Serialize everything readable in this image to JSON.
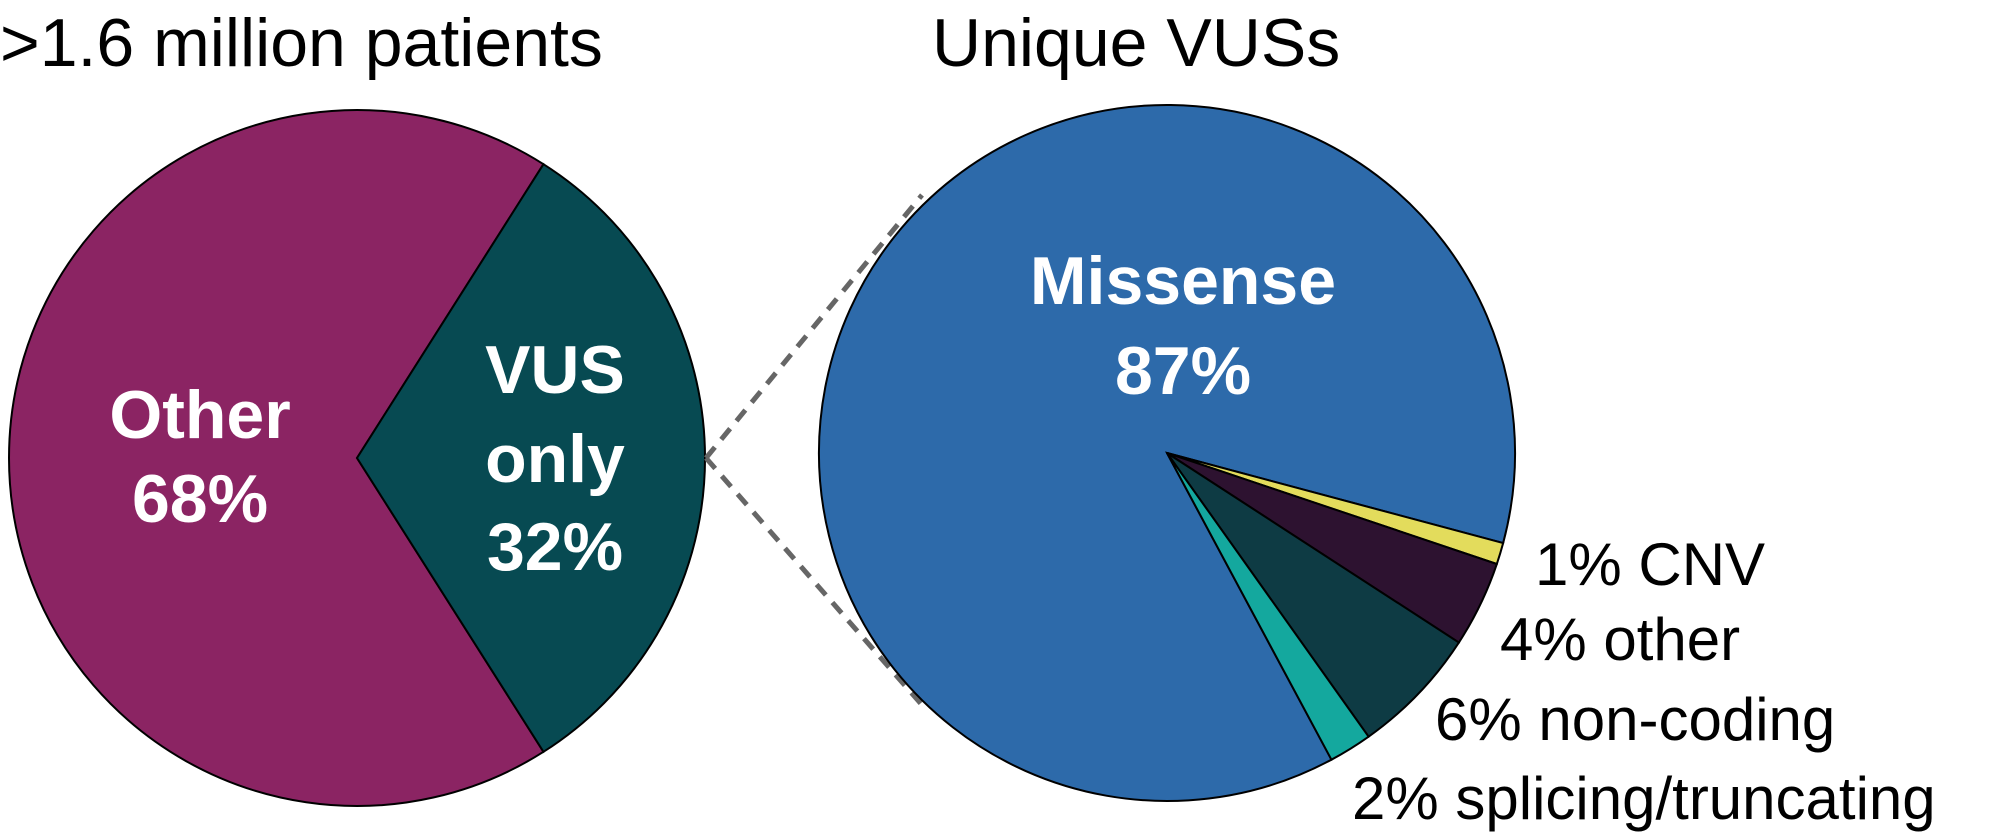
{
  "chart_data": [
    {
      "type": "pie",
      "title": ">1.6 million patients",
      "slices": [
        {
          "key": "other",
          "line1": "Other",
          "line2": "",
          "pct_label": "68%",
          "value": 68,
          "color": "#8B2463"
        },
        {
          "key": "vus",
          "line1": "VUS",
          "line2": "only",
          "pct_label": "32%",
          "value": 32,
          "color": "#074A52"
        }
      ]
    },
    {
      "type": "pie",
      "title": "Unique VUSs",
      "slices": [
        {
          "key": "missense",
          "label": "Missense",
          "pct_label": "87%",
          "value": 87,
          "color": "#2D6AAA"
        },
        {
          "key": "cnv",
          "label": "1% CNV",
          "value": 1,
          "color": "#E3DC5C"
        },
        {
          "key": "other",
          "label": "4% other",
          "value": 4,
          "color": "#2D1230"
        },
        {
          "key": "noncoding",
          "label": "6% non-coding",
          "value": 6,
          "color": "#0E3B44"
        },
        {
          "key": "splicing",
          "label": "2% splicing/truncating",
          "value": 2,
          "color": "#14A89E"
        }
      ]
    }
  ]
}
